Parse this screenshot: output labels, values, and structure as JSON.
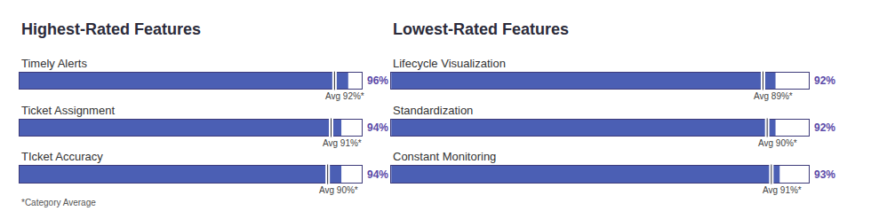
{
  "chart_data": [
    {
      "type": "bar",
      "orientation": "horizontal",
      "title": "Highest-Rated Features",
      "categories": [
        "Timely Alerts",
        "Ticket Assignment",
        "TIcket Accuracy"
      ],
      "values": [
        96,
        94,
        94
      ],
      "value_labels": [
        "96%",
        "94%",
        "94%"
      ],
      "averages": [
        92,
        91,
        90
      ],
      "average_labels": [
        "Avg 92%*",
        "Avg 91%*",
        "Avg 90%*"
      ],
      "xlim": [
        0,
        100
      ],
      "data_labels": true,
      "tick_labels": false,
      "grid": false,
      "color": "#4b5fb4",
      "annotations": [
        "*Category Average"
      ]
    },
    {
      "type": "bar",
      "orientation": "horizontal",
      "title": "Lowest-Rated Features",
      "categories": [
        "Lifecycle Visualization",
        "Standardization",
        "Constant Monitoring"
      ],
      "values": [
        92,
        92,
        93
      ],
      "value_labels": [
        "92%",
        "92%",
        "93%"
      ],
      "averages": [
        89,
        90,
        91
      ],
      "average_labels": [
        "Avg 89%*",
        "Avg 90%*",
        "Avg 91%*"
      ],
      "xlim": [
        0,
        100
      ],
      "data_labels": true,
      "tick_labels": false,
      "grid": false,
      "color": "#4b5fb4"
    }
  ]
}
